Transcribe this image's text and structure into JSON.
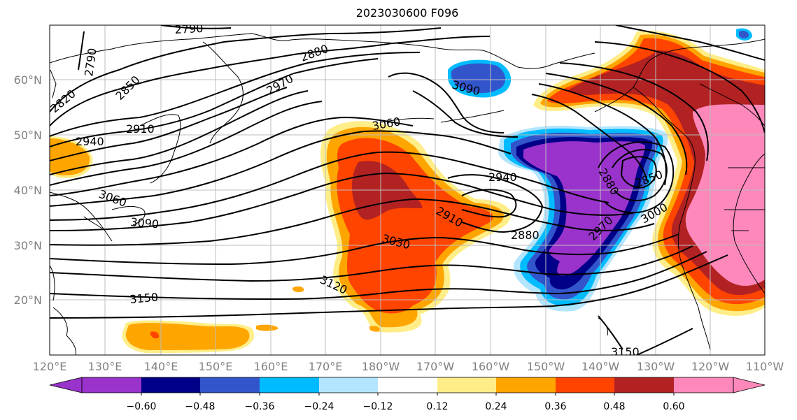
{
  "title": "2023030600 F096",
  "map": {
    "lon_labels": [
      "120°E",
      "130°E",
      "140°E",
      "150°E",
      "160°E",
      "170°E",
      "180°W",
      "170°W",
      "160°W",
      "150°W",
      "140°W",
      "130°W",
      "120°W",
      "110°W"
    ],
    "lat_labels": [
      "60°N",
      "50°N",
      "40°N",
      "30°N",
      "20°N"
    ]
  },
  "contour_labels": [
    "2790",
    "2790",
    "2820",
    "2850",
    "2880",
    "2970",
    "2910",
    "2940",
    "3060",
    "3090",
    "3090",
    "3060",
    "2940",
    "2910",
    "2880",
    "2880",
    "2850",
    "3000",
    "2970",
    "3030",
    "3120",
    "3150",
    "3150"
  ],
  "colorbar": {
    "tick_labels": [
      "−0.60",
      "−0.48",
      "−0.36",
      "−0.24",
      "−0.12",
      "0.12",
      "0.24",
      "0.36",
      "0.48",
      "0.60"
    ],
    "colors": [
      "#9933cc",
      "#000088",
      "#3355cc",
      "#00bbff",
      "#b3e5ff",
      "#ffffff",
      "#ffee88",
      "#ffa500",
      "#ff4400",
      "#b22222",
      "#ff88bb",
      "#ff88bb"
    ]
  },
  "fill_colors": {
    "purple": "#9933cc",
    "navy": "#000088",
    "royal": "#3355cc",
    "sky": "#00bbff",
    "pale_blue": "#b3e5ff",
    "yellow": "#ffee88",
    "orange": "#ffa500",
    "red_orange": "#ff4400",
    "dark_red": "#b22222",
    "pink": "#ff88bb"
  }
}
